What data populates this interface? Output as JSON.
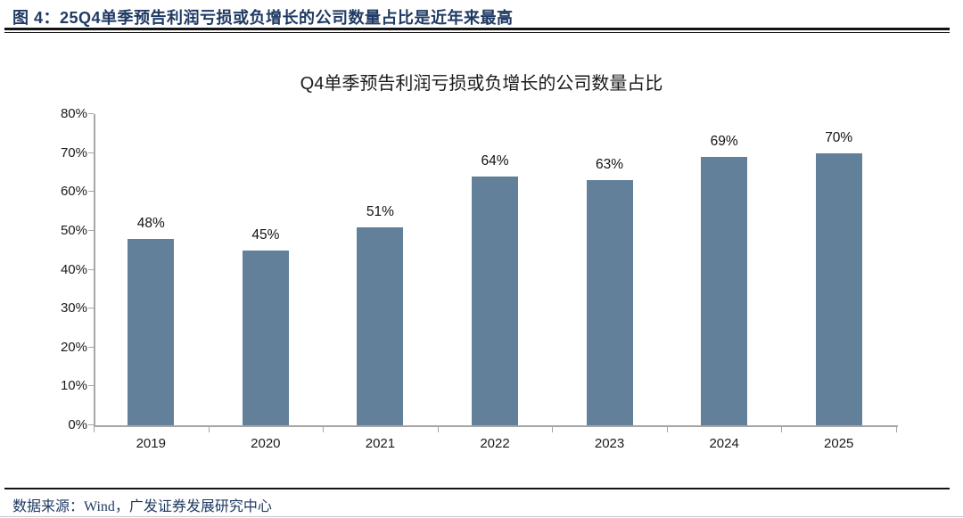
{
  "figure": {
    "caption": "图 4：25Q4单季预告利润亏损或负增长的公司数量占比是近年来最高",
    "source": "数据来源：Wind，广发证券发展研究中心"
  },
  "chart_data": {
    "type": "bar",
    "title": "Q4单季预告利润亏损或负增长的公司数量占比",
    "categories": [
      "2019",
      "2020",
      "2021",
      "2022",
      "2023",
      "2024",
      "2025"
    ],
    "values": [
      48,
      45,
      51,
      64,
      63,
      69,
      70
    ],
    "data_labels": [
      "48%",
      "45%",
      "51%",
      "64%",
      "63%",
      "69%",
      "70%"
    ],
    "xlabel": "",
    "ylabel": "",
    "ylim": [
      0,
      80
    ],
    "ytick_step": 10,
    "ytick_labels": [
      "0%",
      "10%",
      "20%",
      "30%",
      "40%",
      "50%",
      "60%",
      "70%",
      "80%"
    ],
    "grid": false,
    "legend": false,
    "bar_color": "#63809B"
  },
  "colors": {
    "caption_text": "#1F3A63",
    "source_text": "#1F3A63",
    "divider_rule": "#141414",
    "axis_line": "#A6A6A6",
    "bar_fill": "#63809B"
  }
}
